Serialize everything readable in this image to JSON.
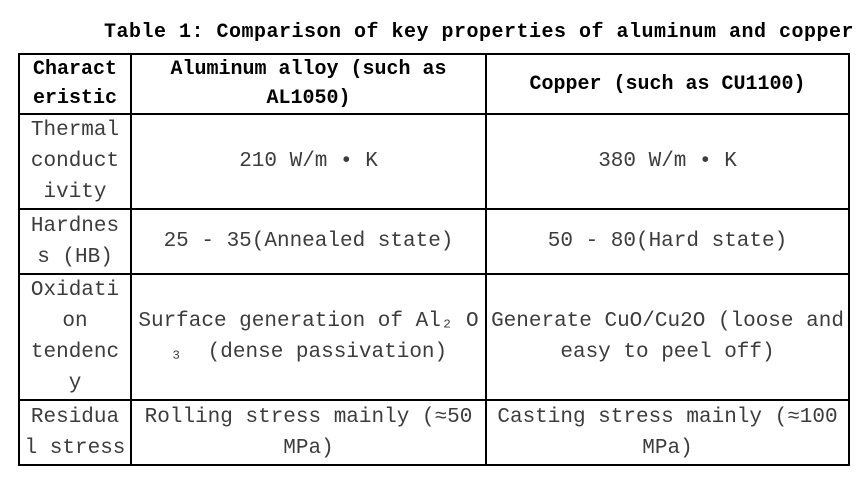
{
  "title": "Table 1: Comparison of key properties of aluminum and copper",
  "table": {
    "headers": {
      "characteristic": "Charact\neristic",
      "aluminum": "Aluminum alloy (such as\nAL1050)",
      "copper": "Copper (such as CU1100)"
    },
    "rows": [
      {
        "property": "Thermal\nconduct\nivity",
        "aluminum": "210 W/m • K",
        "copper": "380 W/m • K"
      },
      {
        "property": "Hardnes\ns (HB)",
        "aluminum": "25 - 35(Annealed state)",
        "copper": "50 - 80(Hard state)"
      },
      {
        "property": "Oxidati\non\ntendenc\ny",
        "aluminum": "Surface generation of Al₂ O\n₃  (dense passivation)",
        "copper": "Generate CuO/Cu2O (loose and\neasy to peel off)"
      },
      {
        "property": "Residua\nl stress",
        "aluminum": "Rolling stress mainly (≈50\nMPa)",
        "copper": "Casting stress mainly (≈100\nMPa)"
      }
    ]
  },
  "colors": {
    "border": "#000000",
    "header_text": "#000000",
    "body_text": "#3c3c3c",
    "background": "#ffffff"
  }
}
